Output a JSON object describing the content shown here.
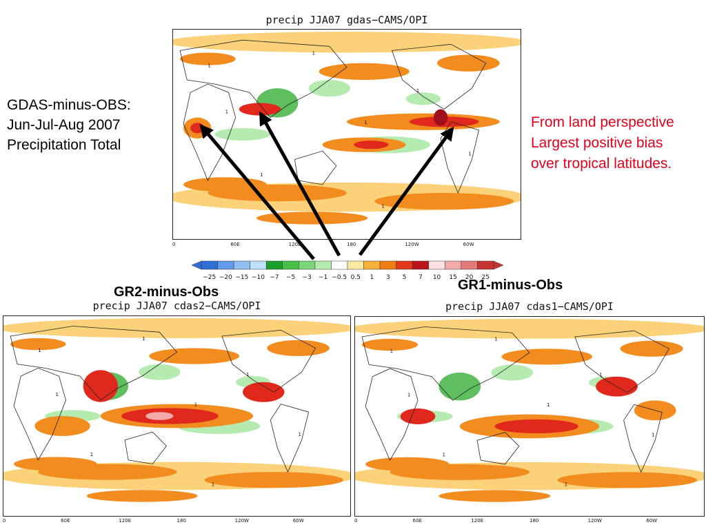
{
  "annotations": {
    "left_note_lines": [
      "GDAS-minus-OBS:",
      "Jun-Jul-Aug 2007",
      "Precipitation Total"
    ],
    "right_note_lines": [
      "From land perspective",
      "Largest positive bias",
      "over tropical latitudes."
    ],
    "gr2_heading": "GR2-minus-Obs",
    "gr1_heading": "GR1-minus-Obs"
  },
  "panels": {
    "top": {
      "title": "precip JJA07 gdas−CAMS/OPI"
    },
    "bottom_left": {
      "title": "precip JJA07 cdas2−CAMS/OPI"
    },
    "bottom_right": {
      "title": "precip JJA07 cdas1−CAMS/OPI"
    }
  },
  "lon_ticks": [
    "0",
    "60E",
    "120E",
    "180",
    "120W",
    "60W"
  ],
  "colorbar": {
    "labels": [
      "−25",
      "−20",
      "−15",
      "−10",
      "−7",
      "−5",
      "−3",
      "−1",
      "−0.5",
      "0.5",
      "1",
      "3",
      "5",
      "7",
      "10",
      "15",
      "20",
      "25"
    ],
    "colors": [
      "#2f6fd6",
      "#5f9be8",
      "#8fc0f0",
      "#bfe0f6",
      "#1e9e2a",
      "#46c046",
      "#7ad67a",
      "#b5ebb0",
      "#ffffff",
      "#fbeaa0",
      "#f6b13b",
      "#f07d11",
      "#e3391a",
      "#b8141a",
      "#fde0e0",
      "#f2aaaa",
      "#e57a7a",
      "#c83434"
    ]
  },
  "contour_label": "1",
  "colors": {
    "accent_red_text": "#e3001b",
    "orange": "#f28c1e",
    "light_orange": "#fbd27a",
    "red": "#e0291c",
    "dark_red": "#a0101a",
    "green": "#5fbf5f",
    "light_green": "#b5ebb0"
  }
}
